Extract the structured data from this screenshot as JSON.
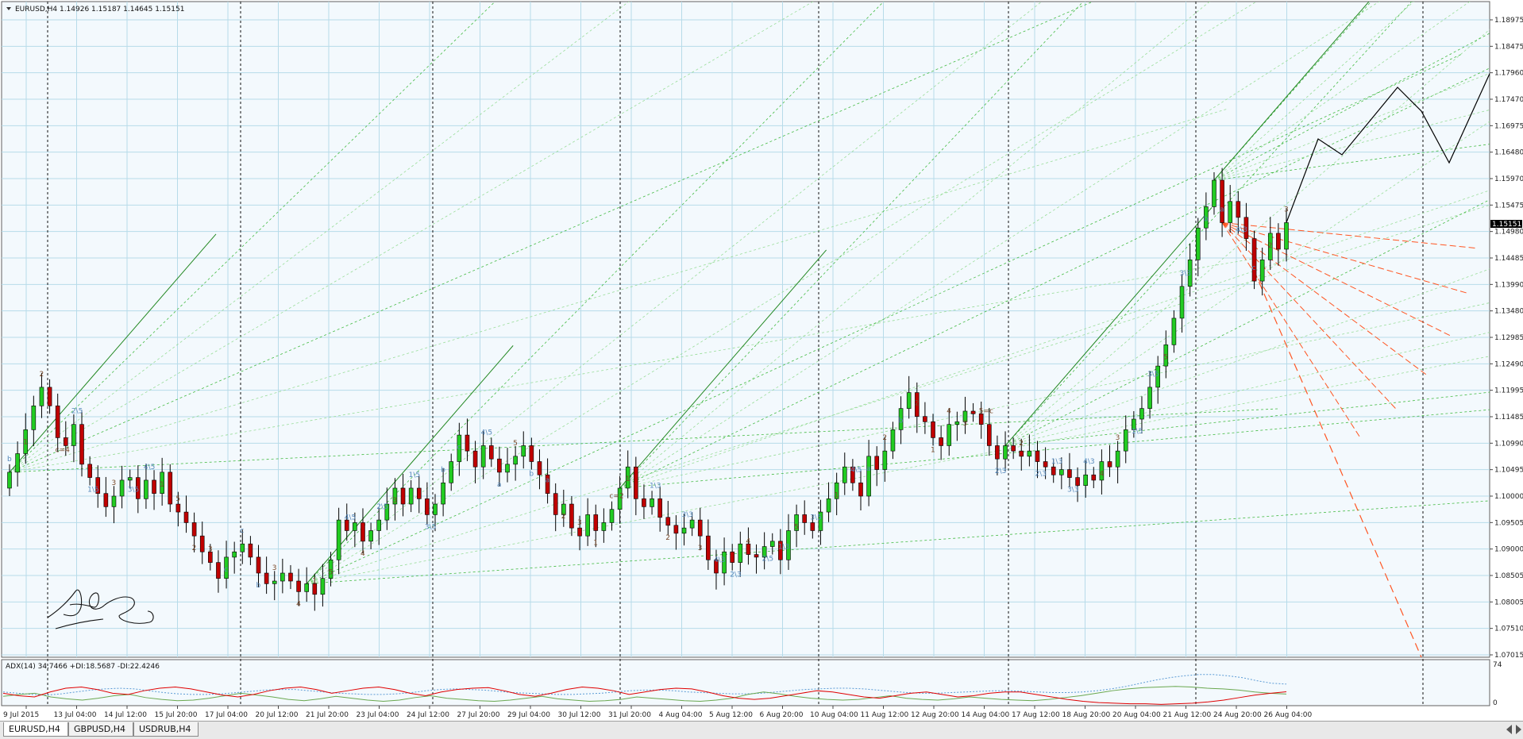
{
  "window": {
    "header": "EURUSD,H4  1.14926 1.15187 1.14645 1.15151",
    "menu_icon": "triangle-down-icon"
  },
  "tabs": [
    {
      "label": "EURUSD,H4",
      "active": true
    },
    {
      "label": "GBPUSD,H4",
      "active": false
    },
    {
      "label": "USDRUB,H4",
      "active": false
    }
  ],
  "indicator": {
    "header": "ADX(14) 34.7466 +DI:18.5687 -DI:22.4246",
    "scale": [
      "74",
      "0"
    ],
    "adx": [
      22,
      20,
      18,
      17,
      19,
      22,
      25,
      27,
      28,
      27,
      24,
      21,
      19,
      18,
      18,
      19,
      21,
      23,
      25,
      26,
      26,
      24,
      22,
      20,
      19,
      18,
      18,
      19,
      21,
      24,
      26,
      27,
      26,
      25,
      23,
      21,
      20,
      19,
      18,
      18,
      19,
      20,
      22,
      24,
      25,
      25,
      24,
      22,
      21,
      20,
      19,
      19,
      20,
      22,
      24,
      26,
      27,
      28,
      28,
      27,
      25,
      23,
      21,
      20,
      20,
      21,
      22,
      23,
      24,
      24,
      23,
      22,
      21,
      21,
      22,
      24,
      27,
      31,
      36,
      41,
      45,
      48,
      50,
      50,
      48,
      45,
      40,
      36,
      34.7
    ],
    "plus_di": [
      15,
      18,
      20,
      14,
      11,
      9,
      12,
      16,
      18,
      13,
      10,
      8,
      9,
      12,
      16,
      20,
      17,
      14,
      10,
      8,
      11,
      15,
      12,
      9,
      7,
      9,
      13,
      16,
      12,
      10,
      8,
      7,
      9,
      12,
      15,
      11,
      9,
      7,
      8,
      10,
      14,
      12,
      10,
      8,
      7,
      9,
      12,
      18,
      22,
      19,
      15,
      12,
      10,
      9,
      10,
      13,
      16,
      12,
      10,
      9,
      11,
      14,
      12,
      10,
      9,
      8,
      10,
      13,
      16,
      20,
      24,
      27,
      29,
      30,
      31,
      30,
      28,
      27,
      25,
      22,
      20,
      18.6
    ],
    "minus_di": [
      20,
      16,
      14,
      22,
      28,
      30,
      26,
      20,
      18,
      24,
      28,
      30,
      27,
      22,
      17,
      14,
      18,
      24,
      28,
      30,
      26,
      20,
      24,
      28,
      30,
      26,
      20,
      16,
      22,
      26,
      28,
      29,
      24,
      18,
      15,
      20,
      26,
      30,
      28,
      24,
      18,
      22,
      26,
      28,
      27,
      22,
      16,
      12,
      10,
      12,
      16,
      20,
      24,
      22,
      18,
      14,
      12,
      16,
      20,
      22,
      18,
      14,
      16,
      20,
      22,
      22,
      18,
      14,
      10,
      7,
      5,
      4,
      3,
      3,
      2,
      3,
      4,
      6,
      9,
      13,
      17,
      20,
      22.4
    ],
    "colors": {
      "adx": "#5b9bd5",
      "plus_di": "#6aa84f",
      "minus_di": "#e00000"
    }
  },
  "annotation": {
    "signature": "handwritten-signature"
  },
  "chart_data": {
    "type": "candlestick",
    "symbol": "EURUSD",
    "timeframe": "H4",
    "last_price": "1.15151",
    "ylim": [
      1.0701,
      1.1897
    ],
    "y_ticks": [
      "1.18975",
      "1.18475",
      "1.17960",
      "1.17470",
      "1.16975",
      "1.16480",
      "1.15970",
      "1.15475",
      "1.14980",
      "1.14485",
      "1.13990",
      "1.13480",
      "1.12985",
      "1.12490",
      "1.11995",
      "1.11485",
      "1.10990",
      "1.10495",
      "1.10000",
      "1.09505",
      "1.09000",
      "1.08505",
      "1.08005",
      "1.07510",
      "1.07015"
    ],
    "x_ticks": [
      "9 Jul 2015",
      "13 Jul 04:00",
      "14 Jul 12:00",
      "15 Jul 20:00",
      "17 Jul 04:00",
      "20 Jul 12:00",
      "21 Jul 20:00",
      "23 Jul 04:00",
      "24 Jul 12:00",
      "27 Jul 20:00",
      "29 Jul 04:00",
      "30 Jul 12:00",
      "31 Jul 20:00",
      "4 Aug 04:00",
      "5 Aug 12:00",
      "6 Aug 20:00",
      "10 Aug 04:00",
      "11 Aug 12:00",
      "12 Aug 20:00",
      "14 Aug 04:00",
      "17 Aug 12:00",
      "18 Aug 20:00",
      "20 Aug 04:00",
      "21 Aug 12:00",
      "24 Aug 20:00",
      "26 Aug 04:00"
    ],
    "closes": [
      1.1045,
      1.108,
      1.1125,
      1.117,
      1.1205,
      1.117,
      1.111,
      1.1095,
      1.1135,
      1.106,
      1.1035,
      1.1005,
      1.098,
      1.1,
      1.103,
      1.1035,
      1.0995,
      1.103,
      1.1005,
      1.1045,
      1.0985,
      1.097,
      1.095,
      1.0925,
      1.0895,
      1.0875,
      1.0845,
      1.0885,
      1.0895,
      1.091,
      1.0885,
      1.0855,
      1.0835,
      1.084,
      1.0855,
      1.084,
      1.082,
      1.0835,
      1.0815,
      1.0845,
      1.088,
      1.0955,
      1.0935,
      1.095,
      1.0915,
      1.0935,
      1.0955,
      1.0985,
      1.1015,
      1.0985,
      1.1015,
      1.0995,
      1.0965,
      1.0985,
      1.1025,
      1.1065,
      1.1115,
      1.1085,
      1.1055,
      1.1095,
      1.107,
      1.1045,
      1.106,
      1.1075,
      1.1095,
      1.1065,
      1.104,
      1.1005,
      1.0965,
      1.0985,
      1.094,
      1.0925,
      1.0965,
      1.0935,
      1.095,
      1.0975,
      1.1015,
      1.1055,
      1.0995,
      1.098,
      1.0995,
      1.096,
      1.0945,
      1.093,
      1.094,
      1.0955,
      1.0925,
      1.088,
      1.0855,
      1.0895,
      1.0875,
      1.091,
      1.089,
      1.0885,
      1.0905,
      1.0915,
      1.088,
      1.0935,
      1.0965,
      1.095,
      1.0935,
      1.097,
      1.0995,
      1.1025,
      1.1055,
      1.1025,
      1.1,
      1.1075,
      1.105,
      1.1085,
      1.1125,
      1.1165,
      1.1195,
      1.115,
      1.114,
      1.111,
      1.1095,
      1.1135,
      1.114,
      1.116,
      1.1155,
      1.1135,
      1.1095,
      1.107,
      1.1095,
      1.1085,
      1.1075,
      1.1085,
      1.1065,
      1.1055,
      1.104,
      1.105,
      1.1035,
      1.102,
      1.104,
      1.103,
      1.1065,
      1.1055,
      1.1085,
      1.1125,
      1.1145,
      1.1165,
      1.1205,
      1.1245,
      1.1285,
      1.1335,
      1.1395,
      1.1445,
      1.1505,
      1.1545,
      1.1595,
      1.1515,
      1.1555,
      1.1525,
      1.1485,
      1.1405,
      1.1445,
      1.1495,
      1.1465,
      1.15151
    ],
    "wave_labels": [
      "b",
      "1",
      "2",
      "c=4",
      "2\\5",
      "1\\5",
      "3",
      "3\\5",
      "4\\5",
      "1",
      "5",
      "2",
      "3",
      "c",
      "c",
      "b",
      "3",
      "4",
      "1",
      "5",
      "4\\5",
      "4",
      "2\\5",
      "3",
      "1\\5",
      "3\\5",
      "b",
      "c",
      "4\\5",
      "a",
      "5",
      "b",
      "a",
      "2",
      "3",
      "1",
      "c=2",
      "1",
      "1\\3",
      "2",
      "3\\3",
      "3",
      "4\\3",
      "2\\3",
      "4",
      "2\\5",
      "1\\3",
      "5",
      "3\\5",
      "1",
      "4\\5",
      "a",
      "2",
      "b",
      "2",
      "1",
      "4",
      "3",
      "5=c",
      "2\\3",
      "2",
      "2\\3",
      "1\\3",
      "3\\3",
      "4\\3",
      "4",
      "3",
      "1\\5",
      "3\\5",
      "5",
      "3\\3",
      "b",
      "a",
      "4\\3",
      "c",
      "2",
      "3"
    ]
  }
}
